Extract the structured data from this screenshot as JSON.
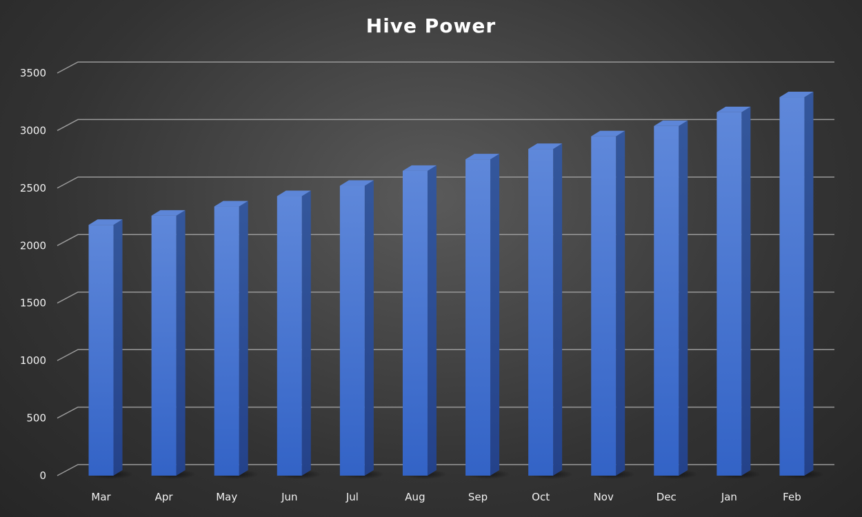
{
  "chart_data": {
    "type": "bar",
    "title": "Hive Power",
    "xlabel": "",
    "ylabel": "",
    "categories": [
      "Mar",
      "Apr",
      "May",
      "Jun",
      "Jul",
      "Aug",
      "Sep",
      "Oct",
      "Nov",
      "Dec",
      "Jan",
      "Feb"
    ],
    "values": [
      2180,
      2260,
      2340,
      2430,
      2520,
      2650,
      2750,
      2840,
      2950,
      3040,
      3160,
      3290
    ],
    "ylim": [
      0,
      3500
    ],
    "yticks": [
      0,
      500,
      1000,
      1500,
      2000,
      2500,
      3000,
      3500
    ],
    "grid": true,
    "legend": "none",
    "colors": {
      "bar_front": "#4a78d4",
      "bar_side": "#2e4f95",
      "bar_top": "#5d86d8",
      "grid": "#9a9a9a",
      "text": "#f2f2f2"
    }
  }
}
